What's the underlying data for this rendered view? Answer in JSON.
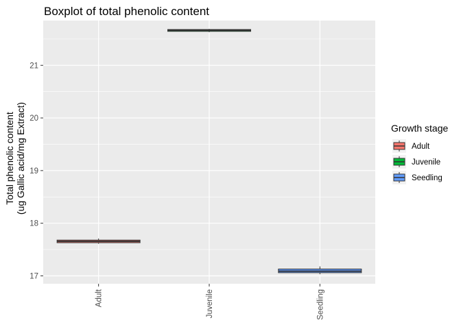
{
  "chart_data": {
    "type": "boxplot",
    "title": "Boxplot of total phenolic content",
    "xlabel": "",
    "ylabel_lines": [
      "Total phenolic content",
      "(ug Gallic acid/mg Extract)"
    ],
    "categories": [
      "Adult",
      "Juvenile",
      "Seedling"
    ],
    "ylim": [
      16.85,
      21.85
    ],
    "y_ticks": [
      17,
      18,
      19,
      20,
      21
    ],
    "grid": true,
    "legend": {
      "title": "Growth stage",
      "position": "right",
      "entries": [
        "Adult",
        "Juvenile",
        "Seedling"
      ]
    },
    "colors": {
      "Adult": "#f8766d",
      "Juvenile": "#00ba38",
      "Seedling": "#619cff",
      "panel_bg": "#ebebeb",
      "grid": "#ffffff"
    },
    "boxes": [
      {
        "category": "Adult",
        "min": 17.61,
        "q1": 17.63,
        "median": 17.655,
        "q3": 17.68,
        "max": 17.71
      },
      {
        "category": "Juvenile",
        "min": 21.63,
        "q1": 21.645,
        "median": 21.665,
        "q3": 21.68,
        "max": 21.69
      },
      {
        "category": "Seedling",
        "min": 17.03,
        "q1": 17.06,
        "median": 17.09,
        "q3": 17.13,
        "max": 17.18
      }
    ]
  }
}
